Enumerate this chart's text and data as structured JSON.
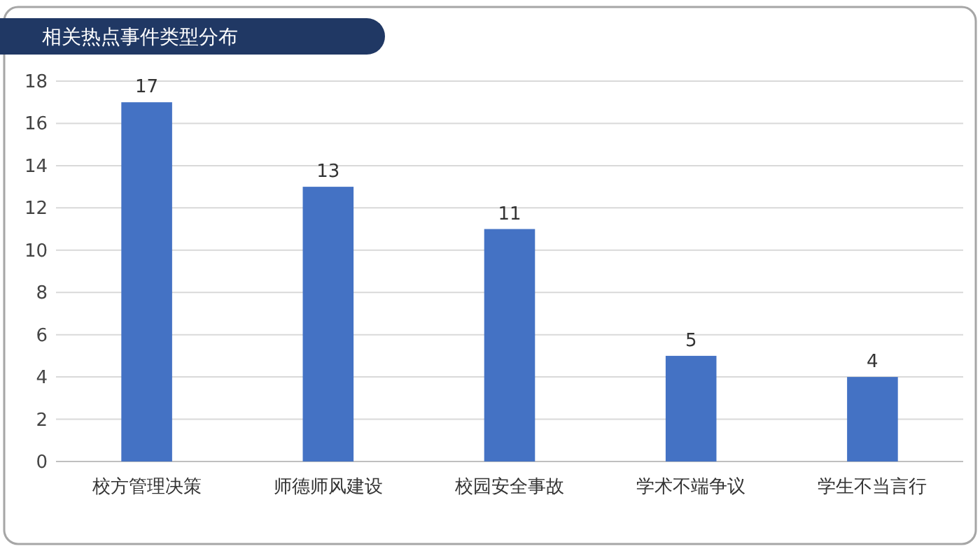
{
  "chart_data": {
    "type": "bar",
    "title": "相关热点事件类型分布",
    "categories": [
      "校方管理决策",
      "师德师风建设",
      "校园安全事故",
      "学术不端争议",
      "学生不当言行"
    ],
    "values": [
      17,
      13,
      11,
      5,
      4
    ],
    "color": "#4472c4",
    "ylim": [
      0,
      18
    ],
    "yticks": [
      0,
      2,
      4,
      6,
      8,
      10,
      12,
      14,
      16,
      18
    ],
    "grid": "y",
    "data_labels": true
  }
}
